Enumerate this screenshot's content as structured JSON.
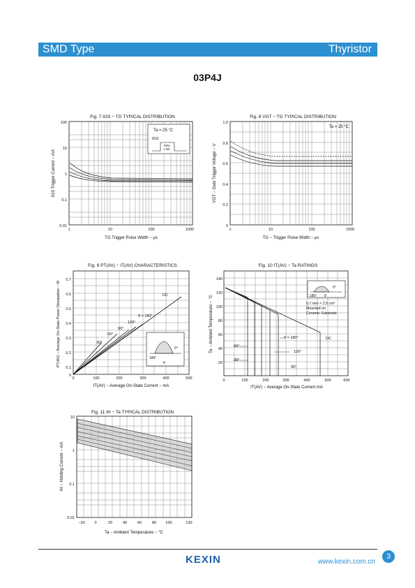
{
  "header": {
    "left": "SMD Type",
    "right": "Thyristor",
    "color": "#2b8fd0"
  },
  "part_number": "03P4J",
  "footer": {
    "logo": "KEXIN",
    "website": "www.kexin.com.cn",
    "page": "3"
  },
  "figures": {
    "fig7": {
      "title": "Fig. 7  IGS − TG  TYPICAL  DISTRIBUTION",
      "ylabel": "IGS  Trigger Current − mA",
      "xlabel": "TG  Trigger Pulse Width − μs",
      "yticks": [
        "100",
        "10",
        "1",
        "0.1",
        "0.01"
      ],
      "xticks": [
        "1",
        "10",
        "100",
        "1000"
      ],
      "cond": "Ta = 25 °C",
      "inset_a": "IGS",
      "inset_b": "tON",
      "inset_c": "1 kΩ"
    },
    "fig8": {
      "title": "Fig. 8  VGT − TG  TYPICAL  DISTRIBUTION",
      "ylabel": "VGT − Gate Trigger Voltage − V",
      "xlabel": "TG − Trigger Pulse Width − μs",
      "yticks": [
        "1.0",
        "0.8",
        "0.6",
        "0.4",
        "0.2",
        "0"
      ],
      "xticks": [
        "1",
        "10",
        "100",
        "1000"
      ],
      "cond": "Ta = 25 °C"
    },
    "fig9": {
      "title": "Fig. 9  PT(AV) − IT(AV)  CHARACTERISTICS",
      "ylabel": "PT(AV) − Average On-State Power Dissipation − W",
      "xlabel": "IT(AV) − Average On-State Current − mA",
      "yticks": [
        "0.7",
        "0.6",
        "0.5",
        "0.4",
        "0.3",
        "0.2",
        "0.1",
        "0"
      ],
      "xticks": [
        "0",
        "100",
        "200",
        "300",
        "400",
        "500"
      ],
      "curve_labels": [
        "DC",
        "θ = 180°",
        "120°",
        "90°",
        "60°",
        "30°"
      ],
      "inset_a": "180°",
      "inset_b": "θ",
      "inset_c": "0°"
    },
    "fig10": {
      "title": "Fig. 10  IT(AV) − Ta  RATINGS",
      "ylabel": "Ta − Ambient Temperature − °C",
      "xlabel": "IT(AV) − Average On-State Current  mA",
      "yticks": [
        "140",
        "120",
        "100",
        "80",
        "60",
        "40",
        "20"
      ],
      "xticks": [
        "0",
        "100",
        "200",
        "300",
        "400",
        "500",
        "600"
      ],
      "curve_labels": [
        "DC",
        "θ = 180°",
        "120°",
        "90°",
        "60°",
        "30°"
      ],
      "note1": "0.7 mm × 2.5 cm²",
      "note2": "Mounted on",
      "note3": "Ceramic Substrate",
      "inset_a": "180°",
      "inset_b": "θ",
      "inset_c": "0°"
    },
    "fig11": {
      "title": "Fig. 11  IH − Ta  TYPICAL  DISTRIBUTION",
      "ylabel": "IH − Holding Current − mA",
      "xlabel": "Ta − Ambient Temperature − °C",
      "yticks": [
        "10",
        "1",
        "0.1",
        "0.01"
      ],
      "xticks": [
        "−20",
        "0",
        "20",
        "40",
        "60",
        "80",
        "100",
        "120"
      ]
    }
  }
}
